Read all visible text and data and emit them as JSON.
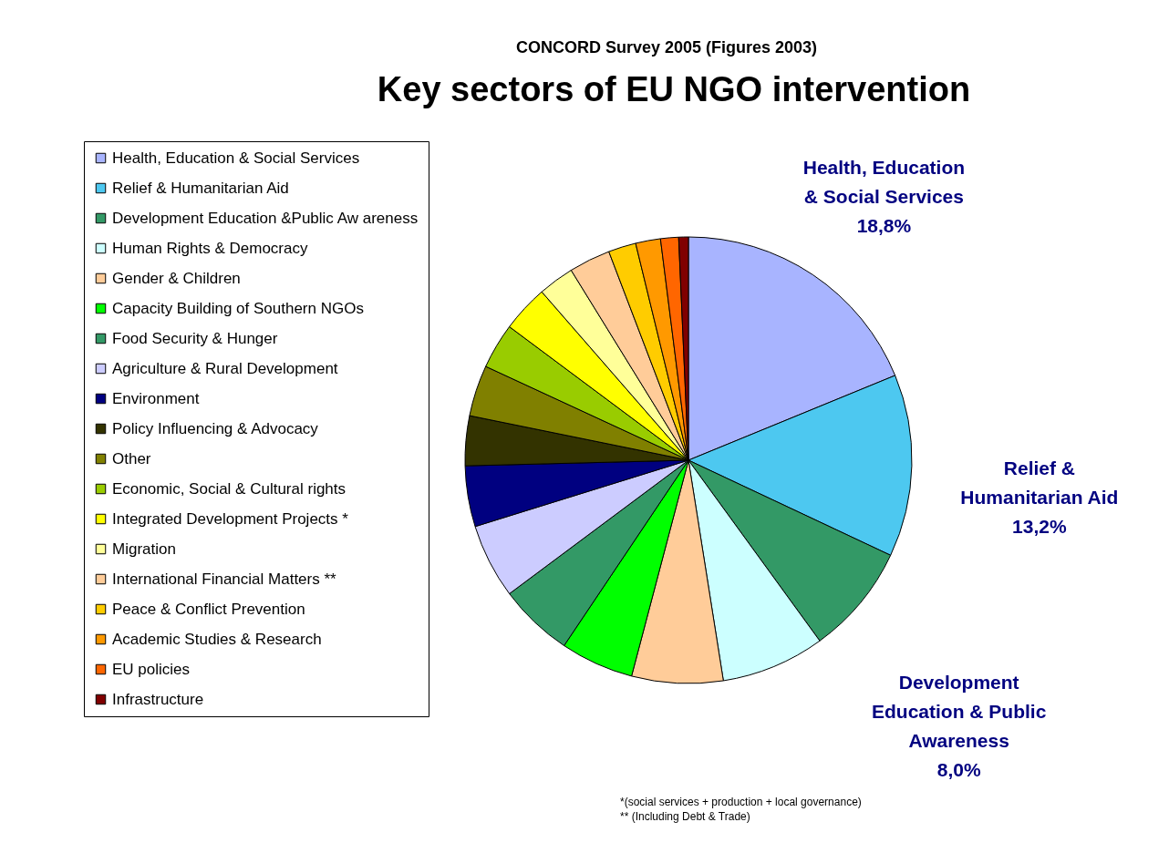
{
  "chart_data": {
    "type": "pie",
    "title": "Key sectors of EU NGO intervention",
    "subtitle": "CONCORD Survey 2005 (Figures 2003)",
    "categories": [
      "Health, Education & Social Services",
      "Relief & Humanitarian Aid",
      "Development Education &Public Aw areness",
      "Human Rights & Democracy",
      "Gender & Children",
      "Capacity Building of Southern NGOs",
      "Food Security & Hunger",
      "Agriculture & Rural Development",
      "Environment",
      "Policy Influencing & Advocacy",
      "Other",
      "Economic, Social & Cultural rights",
      "Integrated Development Projects *",
      "Migration",
      "International Financial Matters **",
      "Peace & Conflict Prevention",
      "Academic Studies & Research",
      "EU policies",
      "Infrastructure"
    ],
    "values": [
      18.8,
      13.2,
      8.0,
      7.5,
      6.6,
      5.3,
      5.4,
      5.4,
      4.4,
      3.6,
      3.7,
      3.3,
      3.4,
      2.6,
      3.0,
      2.0,
      1.8,
      1.3,
      0.7
    ],
    "colors": [
      "#a8b4ff",
      "#4dc8f0",
      "#339966",
      "#ccffff",
      "#ffcc99",
      "#00ff00",
      "#339966",
      "#ccccff",
      "#000080",
      "#333300",
      "#808000",
      "#99cc00",
      "#ffff00",
      "#ffff99",
      "#ffcc99",
      "#ffcc00",
      "#ff9900",
      "#ff6600",
      "#800000"
    ],
    "value_labels": [
      "Health, Education\n& Social Services\n18,8%",
      "Relief &\nHumanitarian Aid\n13,2%",
      "Development\nEducation & Public\nAwareness\n8,0%",
      null,
      null,
      null,
      null,
      null,
      null,
      null,
      null,
      null,
      null,
      null,
      null,
      null,
      null,
      null,
      null
    ],
    "legend": "left",
    "annotations": [
      "*(social services + production + local governance)",
      "** (Including Debt & Trade)"
    ]
  }
}
